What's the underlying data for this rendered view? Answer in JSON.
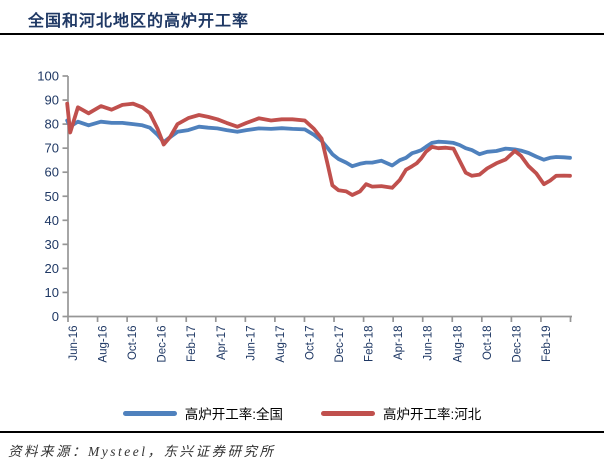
{
  "header": {
    "title": "全国和河北地区的高炉开工率"
  },
  "footer": {
    "source_text": "资料来源：Mysteel，东兴证券研究所"
  },
  "colors": {
    "title_navy": "#1F3864",
    "axis_gray": "#969696",
    "national_blue": "#4F81BD",
    "hebei_red": "#C0504D"
  },
  "chart_data": {
    "type": "line",
    "title": "全国和河北地区的高炉开工率",
    "xlabel": "",
    "ylabel": "",
    "grid": false,
    "legend_position": "bottom",
    "y_axis": {
      "min": 0,
      "max": 100,
      "step": 10,
      "tick_labels": [
        "0",
        "10",
        "20",
        "30",
        "40",
        "50",
        "60",
        "70",
        "80",
        "90",
        "100"
      ]
    },
    "x_axis": {
      "unit": "months since Jun-2016 label",
      "tick_labels": [
        "Jun-16",
        "Aug-16",
        "Oct-16",
        "Dec-16",
        "Feb-17",
        "Apr-17",
        "Jun-17",
        "Aug-17",
        "Oct-17",
        "Dec-17",
        "Feb-18",
        "Apr-18",
        "Jun-18",
        "Aug-18",
        "Oct-18",
        "Dec-18",
        "Feb-19"
      ]
    },
    "x": [
      -0.4,
      -0.2,
      0.3,
      1.0,
      1.8,
      2.5,
      3.2,
      3.9,
      4.5,
      5.0,
      5.5,
      5.9,
      6.3,
      6.8,
      7.5,
      8.2,
      8.8,
      9.4,
      10.0,
      10.7,
      11.3,
      12.1,
      12.9,
      13.6,
      14.3,
      15.1,
      15.7,
      16.2,
      16.6,
      16.9,
      17.3,
      17.8,
      18.2,
      18.7,
      19.1,
      19.5,
      20.1,
      20.8,
      21.3,
      21.7,
      22.1,
      22.4,
      22.7,
      23.0,
      23.4,
      23.8,
      24.3,
      24.8,
      25.2,
      25.6,
      26.0,
      26.5,
      27.0,
      27.6,
      28.2,
      28.8,
      29.2,
      29.7,
      30.2,
      30.7,
      31.1,
      31.5,
      32.0,
      32.4
    ],
    "series": [
      {
        "name": "高炉开工率:全国",
        "color": "#4F81BD",
        "values": [
          81.5,
          79.0,
          81.0,
          79.5,
          81.0,
          80.5,
          80.5,
          80.0,
          79.5,
          78.5,
          75.5,
          72.5,
          74.5,
          76.8,
          77.5,
          78.9,
          78.5,
          78.2,
          77.5,
          76.8,
          77.5,
          78.2,
          78.0,
          78.3,
          78.0,
          77.8,
          75.5,
          73.0,
          70.0,
          67.5,
          65.5,
          64.0,
          62.5,
          63.5,
          64.0,
          64.0,
          64.8,
          62.8,
          65.0,
          66.0,
          67.9,
          68.5,
          69.2,
          70.5,
          72.2,
          72.7,
          72.5,
          72.2,
          71.3,
          70.0,
          69.2,
          67.5,
          68.5,
          68.8,
          69.8,
          69.5,
          69.0,
          68.0,
          66.5,
          65.2,
          66.0,
          66.3,
          66.2,
          66.0
        ]
      },
      {
        "name": "高炉开工率:河北",
        "color": "#C0504D",
        "values": [
          88.5,
          76.5,
          87.0,
          84.5,
          87.5,
          86.0,
          88.0,
          88.5,
          87.0,
          84.5,
          78.0,
          71.5,
          74.5,
          80.0,
          82.5,
          83.8,
          83.0,
          82.0,
          80.5,
          78.9,
          80.5,
          82.4,
          81.5,
          82.0,
          82.0,
          81.5,
          78.0,
          74.0,
          63.0,
          54.5,
          52.5,
          52.0,
          50.5,
          52.0,
          55.0,
          54.0,
          54.2,
          53.5,
          56.8,
          61.0,
          62.5,
          63.7,
          65.8,
          68.5,
          70.5,
          70.0,
          70.2,
          69.8,
          64.8,
          59.8,
          58.5,
          59.0,
          61.6,
          63.7,
          65.3,
          68.8,
          66.8,
          62.5,
          59.5,
          55.0,
          56.5,
          58.5,
          58.6,
          58.5
        ]
      }
    ]
  }
}
